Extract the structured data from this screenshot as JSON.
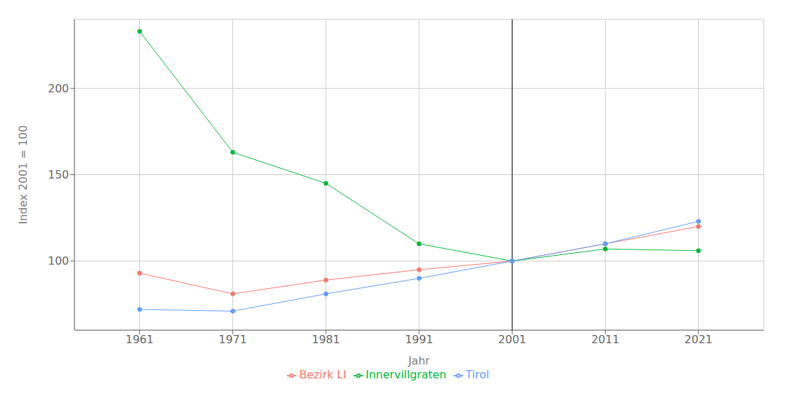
{
  "chart_data": {
    "type": "line",
    "x": [
      1961,
      1971,
      1981,
      1991,
      2001,
      2011,
      2021
    ],
    "series": [
      {
        "name": "Bezirk LI",
        "color": "#F8766D",
        "marker": "circle",
        "values": [
          93,
          81,
          89,
          95,
          100,
          110,
          120
        ]
      },
      {
        "name": "Innervillgraten",
        "color": "#00BA38",
        "marker": "circle",
        "values": [
          233,
          163,
          145,
          110,
          100,
          107,
          106
        ]
      },
      {
        "name": "Tirol",
        "color": "#619CFF",
        "marker": "circle",
        "values": [
          72,
          71,
          81,
          90,
          100,
          110,
          123
        ]
      }
    ],
    "xlabel": "Jahr",
    "ylabel": "Index 2001 = 100",
    "xlim": [
      1954,
      2028
    ],
    "xticks": [
      1961,
      1971,
      1981,
      1991,
      2001,
      2011,
      2021
    ],
    "ylim": [
      60,
      240
    ],
    "yticks": [
      100,
      150,
      200
    ],
    "vlines": [
      2001
    ],
    "grid": true,
    "legend": "bottom"
  }
}
